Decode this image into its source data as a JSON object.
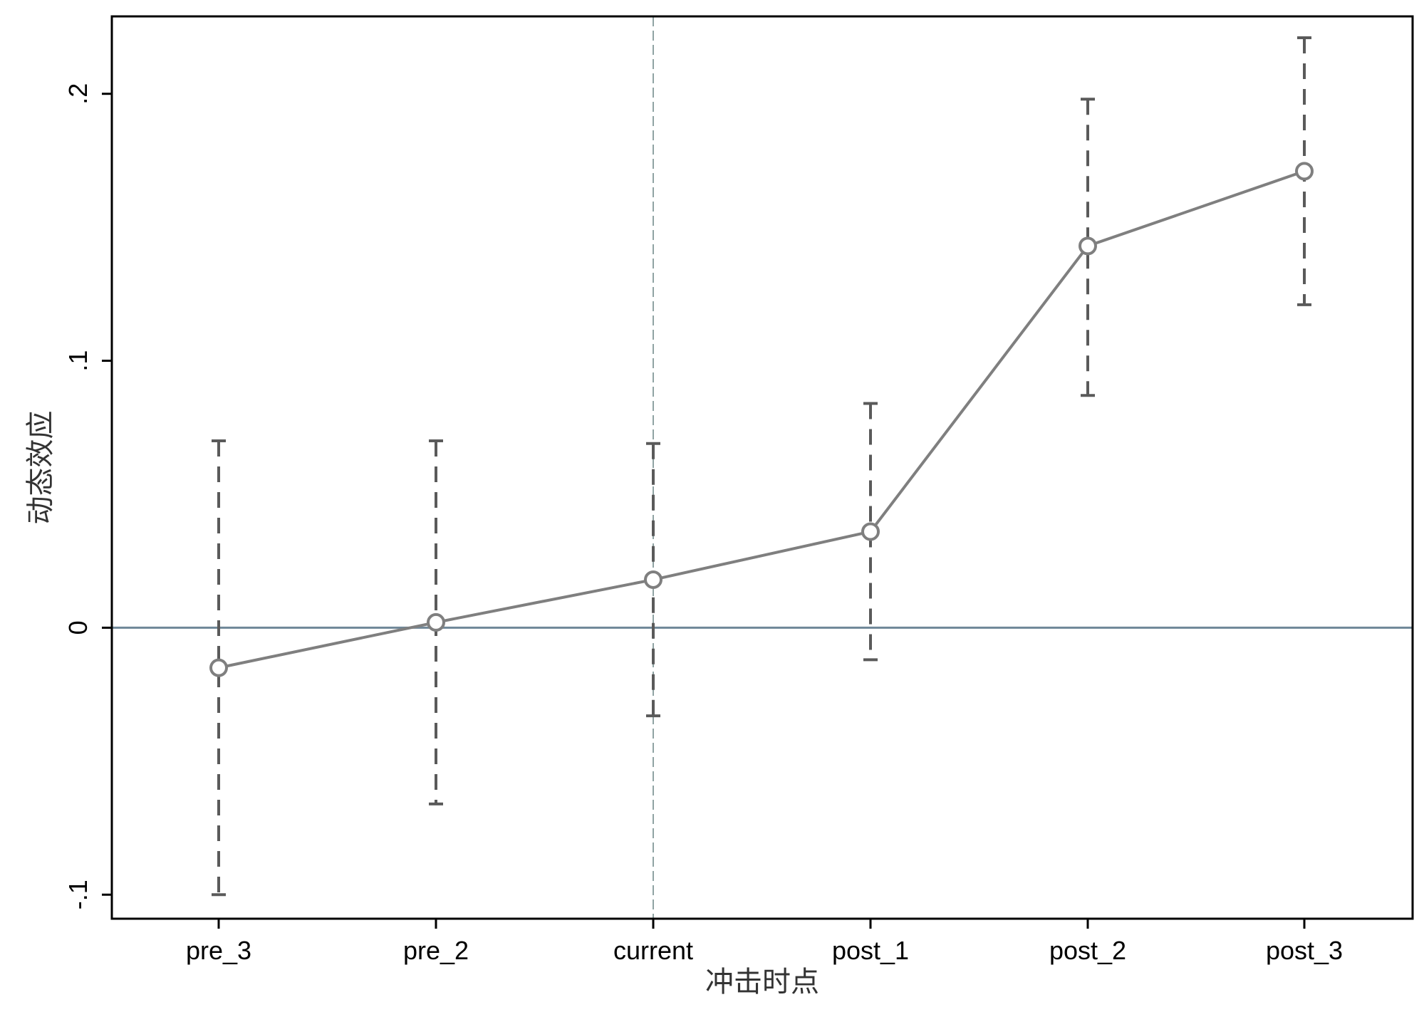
{
  "chart_data": {
    "type": "line",
    "title": "",
    "xlabel": "冲击时点",
    "ylabel": "动态效应",
    "categories": [
      "pre_3",
      "pre_2",
      "current",
      "post_1",
      "post_2",
      "post_3"
    ],
    "series": [
      {
        "values": [
          -0.015,
          0.002,
          0.018,
          0.036,
          0.143,
          0.171
        ],
        "ci_lower": [
          -0.1,
          -0.066,
          -0.033,
          -0.012,
          0.087,
          0.121
        ],
        "ci_upper": [
          0.07,
          0.07,
          0.069,
          0.084,
          0.198,
          0.221
        ]
      }
    ],
    "yticks": [
      -0.1,
      0,
      0.1,
      0.2
    ],
    "ytick_labels": [
      "-.1",
      "0",
      ".1",
      ".2"
    ],
    "ylim": [
      -0.109,
      0.229
    ],
    "reference_lines": {
      "horizontal_y": 0,
      "vertical_at_category": "current"
    },
    "grid": false,
    "legend": "none",
    "colors": {
      "series_line": "#7f7f7f",
      "ci_bars": "#5a5a5a",
      "zero_line": "#6f8798",
      "vertical_line": "#8fa3a3",
      "frame": "#000000"
    }
  }
}
